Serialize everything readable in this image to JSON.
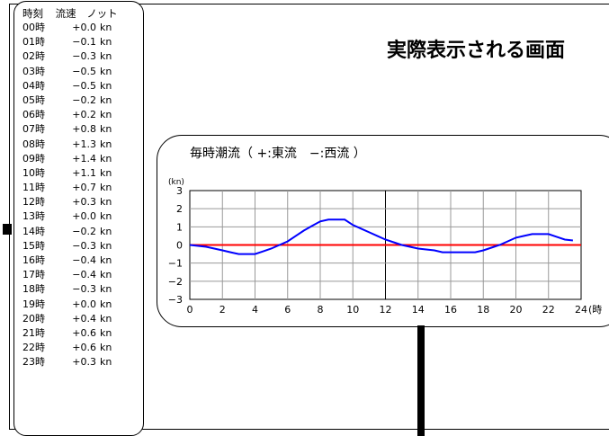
{
  "header": {
    "col_time": "時刻",
    "col_speed": "流速",
    "col_knot": "ノット"
  },
  "unit_label": "kn",
  "rows": [
    {
      "time": "00時",
      "value": "+0.0"
    },
    {
      "time": "01時",
      "value": "−0.1"
    },
    {
      "time": "02時",
      "value": "−0.3"
    },
    {
      "time": "03時",
      "value": "−0.5"
    },
    {
      "time": "04時",
      "value": "−0.5"
    },
    {
      "time": "05時",
      "value": "−0.2"
    },
    {
      "time": "06時",
      "value": "+0.2"
    },
    {
      "time": "07時",
      "value": "+0.8"
    },
    {
      "time": "08時",
      "value": "+1.3"
    },
    {
      "time": "09時",
      "value": "+1.4"
    },
    {
      "time": "10時",
      "value": "+1.1"
    },
    {
      "time": "11時",
      "value": "+0.7"
    },
    {
      "time": "12時",
      "value": "+0.3"
    },
    {
      "time": "13時",
      "value": "+0.0"
    },
    {
      "time": "14時",
      "value": "−0.2"
    },
    {
      "time": "15時",
      "value": "−0.3"
    },
    {
      "time": "16時",
      "value": "−0.4"
    },
    {
      "time": "17時",
      "value": "−0.4"
    },
    {
      "time": "18時",
      "value": "−0.3"
    },
    {
      "time": "19時",
      "value": "+0.0"
    },
    {
      "time": "20時",
      "value": "+0.4"
    },
    {
      "time": "21時",
      "value": "+0.6"
    },
    {
      "time": "22時",
      "value": "+0.6"
    },
    {
      "time": "23時",
      "value": "+0.3"
    }
  ],
  "title": "実際表示される画面",
  "chart_data": {
    "type": "line",
    "title": "毎時潮流（ +:東流　−:西流 ）",
    "ylabel": "(kn)",
    "xlabel": "",
    "x_suffix": "(時",
    "xlim": [
      0,
      24
    ],
    "ylim": [
      -3,
      3
    ],
    "xticks": [
      0,
      2,
      4,
      6,
      8,
      10,
      12,
      14,
      16,
      18,
      20,
      22,
      24
    ],
    "yticks": [
      3,
      2,
      1,
      0,
      -1,
      -2,
      -3
    ],
    "grid": true,
    "series": [
      {
        "color": "#0000ff",
        "x": [
          0,
          0.5,
          1,
          1.5,
          2,
          2.5,
          3,
          3.5,
          4,
          4.5,
          5,
          5.5,
          6,
          6.5,
          7,
          7.5,
          8,
          8.5,
          9,
          9.5,
          10,
          10.5,
          11,
          11.5,
          12,
          12.5,
          13,
          13.5,
          14,
          14.5,
          15,
          15.5,
          16,
          16.5,
          17,
          17.5,
          18,
          18.5,
          19,
          19.5,
          20,
          20.5,
          21,
          21.5,
          22,
          22.5,
          23,
          23.5
        ],
        "y": [
          0.0,
          -0.05,
          -0.1,
          -0.2,
          -0.3,
          -0.4,
          -0.5,
          -0.5,
          -0.5,
          -0.35,
          -0.2,
          0.0,
          0.2,
          0.5,
          0.8,
          1.05,
          1.3,
          1.4,
          1.4,
          1.4,
          1.1,
          0.9,
          0.7,
          0.5,
          0.3,
          0.15,
          0.0,
          -0.1,
          -0.2,
          -0.25,
          -0.3,
          -0.4,
          -0.4,
          -0.4,
          -0.4,
          -0.4,
          -0.3,
          -0.15,
          0.0,
          0.2,
          0.4,
          0.5,
          0.6,
          0.6,
          0.6,
          0.45,
          0.3,
          0.25
        ]
      }
    ],
    "zero_line_color": "#ff0000"
  }
}
